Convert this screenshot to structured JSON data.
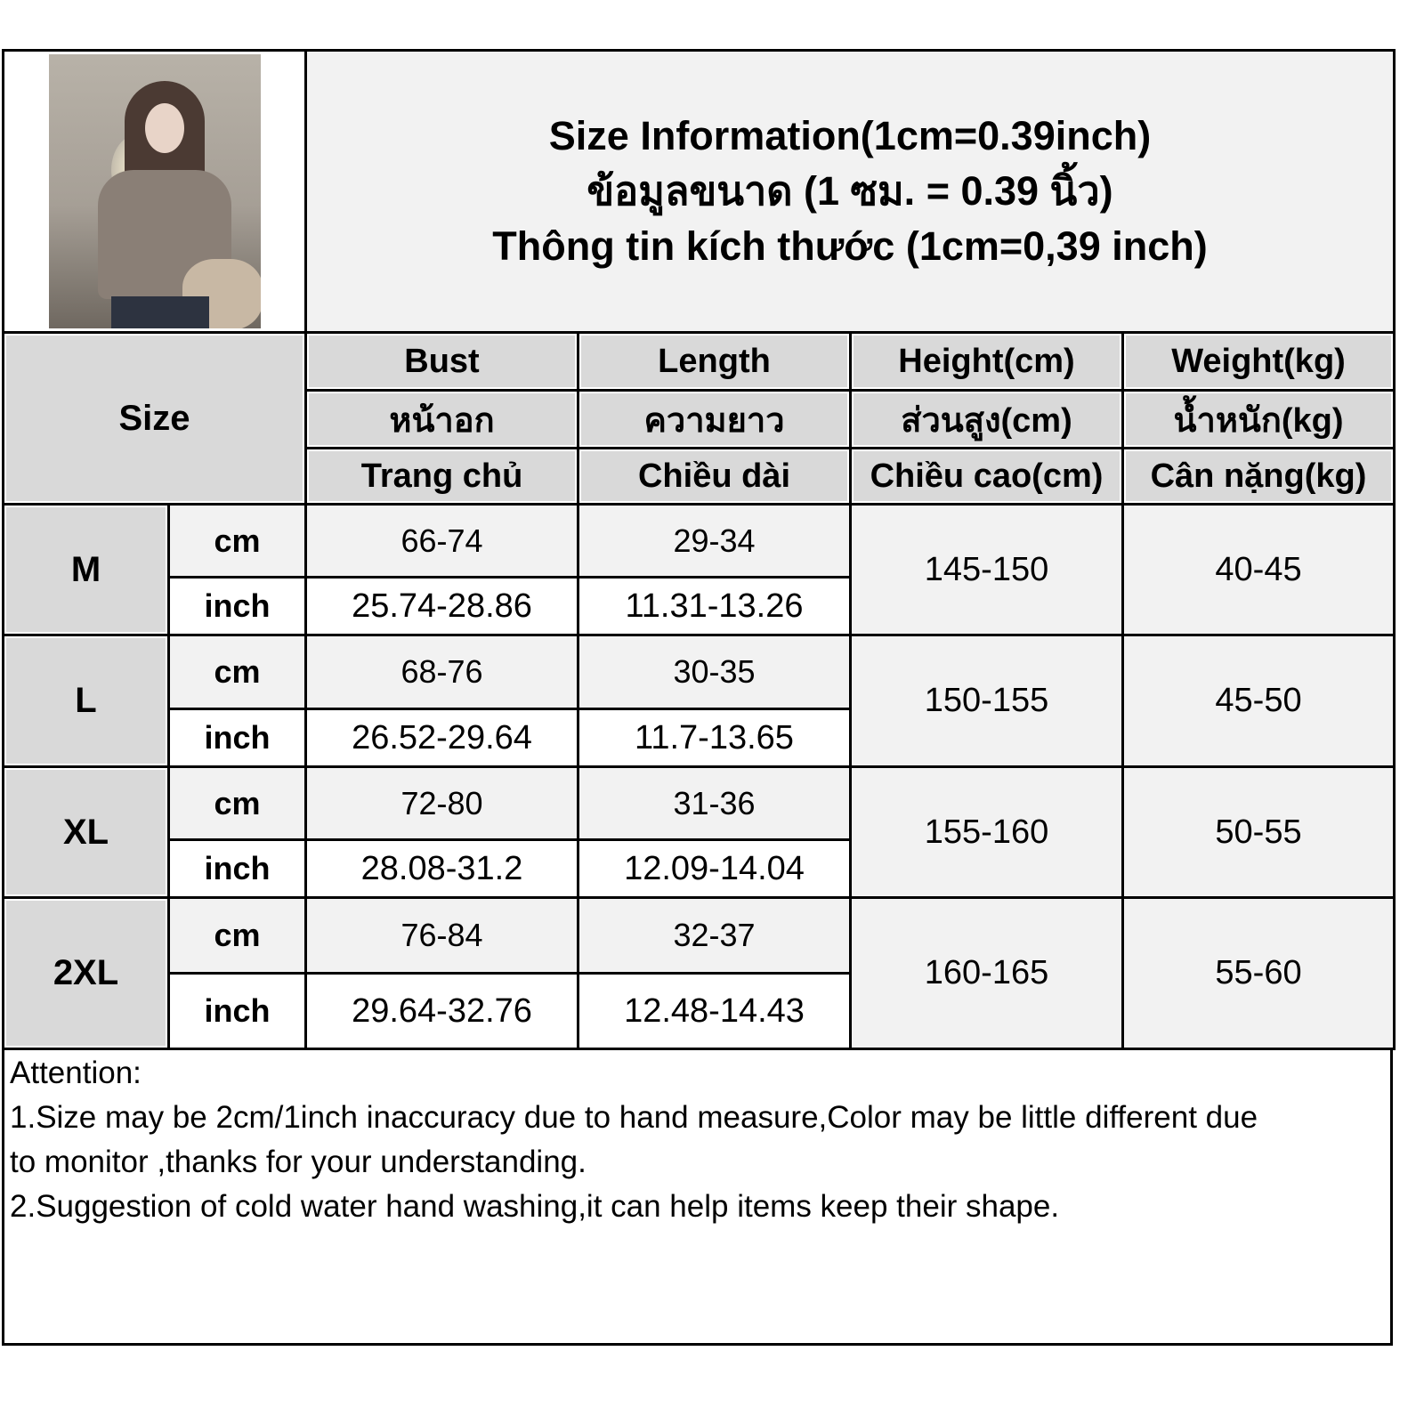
{
  "title": {
    "en": "Size Information(1cm=0.39inch)",
    "th": "ข้อมูลขนาด (1 ซม. = 0.39 นิ้ว)",
    "vi": "Thông tin kích thước (1cm=0,39 inch)"
  },
  "photo": {
    "alt": "model wearing off-shoulder crop top"
  },
  "header": {
    "size_label": "Size",
    "columns": [
      {
        "en": "Bust",
        "th": "หน้าอก",
        "vi": "Trang chủ"
      },
      {
        "en": "Length",
        "th": "ความยาว",
        "vi": "Chiều dài"
      },
      {
        "en": "Height(cm)",
        "th": "ส่วนสูง(cm)",
        "vi": "Chiều cao(cm)"
      },
      {
        "en": "Weight(kg)",
        "th": "น้ำหนัก(kg)",
        "vi": "Cân nặng(kg)"
      }
    ]
  },
  "units": {
    "cm": "cm",
    "inch": "inch"
  },
  "rows": [
    {
      "size": "M",
      "bust_cm": "66-74",
      "bust_inch": "25.74-28.86",
      "length_cm": "29-34",
      "length_inch": "11.31-13.26",
      "height": "145-150",
      "weight": "40-45"
    },
    {
      "size": "L",
      "bust_cm": "68-76",
      "bust_inch": "26.52-29.64",
      "length_cm": "30-35",
      "length_inch": "11.7-13.65",
      "height": "150-155",
      "weight": "45-50"
    },
    {
      "size": "XL",
      "bust_cm": "72-80",
      "bust_inch": "28.08-31.2",
      "length_cm": "31-36",
      "length_inch": "12.09-14.04",
      "height": "155-160",
      "weight": "50-55"
    },
    {
      "size": "2XL",
      "bust_cm": "76-84",
      "bust_inch": "29.64-32.76",
      "length_cm": "32-37",
      "length_inch": "12.48-14.43",
      "height": "160-165",
      "weight": "55-60"
    }
  ],
  "attention": {
    "heading": "Attention:",
    "line1": "1.Size may be 2cm/1inch inaccuracy due to hand measure,Color may be little different due",
    "line2": "to monitor ,thanks for your understanding.",
    "line3": "2.Suggestion of cold water hand washing,it can help items keep their shape."
  }
}
